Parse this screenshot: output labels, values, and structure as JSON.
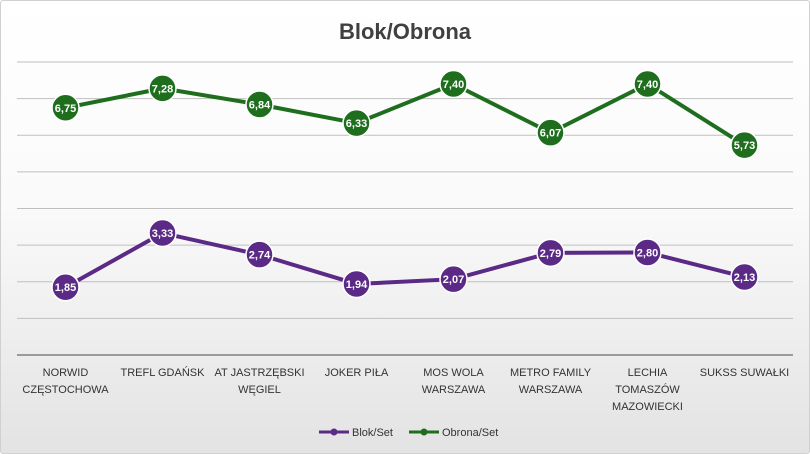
{
  "chart_data": {
    "type": "line",
    "title": "Blok/Obrona",
    "categories": [
      [
        "NORWID",
        "CZĘSTOCHOWA"
      ],
      [
        "TREFL GDAŃSK"
      ],
      [
        "AT JASTRZĘBSKI",
        "WĘGIEL"
      ],
      [
        "JOKER PIŁA"
      ],
      [
        "MOS WOLA",
        "WARSZAWA"
      ],
      [
        "METRO FAMILY",
        "WARSZAWA"
      ],
      [
        "LECHIA",
        "TOMASZÓW",
        "MAZOWIECKI"
      ],
      [
        "SUKSS SUWAŁKI"
      ]
    ],
    "series": [
      {
        "name": "Blok/Set",
        "color": "#5b2a86",
        "values": [
          1.85,
          3.33,
          2.74,
          1.94,
          2.07,
          2.79,
          2.8,
          2.13
        ],
        "labels": [
          "1,85",
          "3,33",
          "2,74",
          "1,94",
          "2,07",
          "2,79",
          "2,80",
          "2,13"
        ]
      },
      {
        "name": "Obrona/Set",
        "color": "#1e6e1e",
        "values": [
          6.75,
          7.28,
          6.84,
          6.33,
          7.4,
          6.07,
          7.4,
          5.73
        ],
        "labels": [
          "6,75",
          "7,28",
          "6,84",
          "6,33",
          "7,40",
          "6,07",
          "7,40",
          "5,73"
        ]
      }
    ],
    "ylim": [
      0,
      8
    ],
    "grid": true,
    "legend": "bottom"
  }
}
